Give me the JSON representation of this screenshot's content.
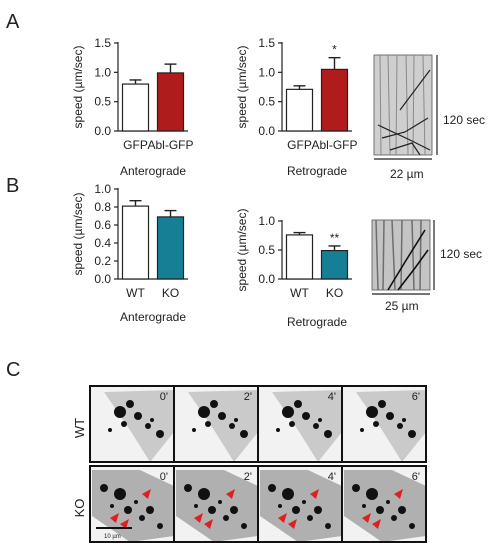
{
  "panels": {
    "a": "A",
    "b": "B",
    "c": "C"
  },
  "colors": {
    "gfp": "#ffffff",
    "abl": "#b01c1c",
    "wt": "#ffffff",
    "ko": "#167f95",
    "frame_bg": "#f2f2f2",
    "arrow": "#e02020"
  },
  "kymographs": {
    "a": {
      "time_label": "120 sec",
      "scale_label": "22 µm"
    },
    "b": {
      "time_label": "120 sec",
      "scale_label": "25 µm"
    }
  },
  "microscopy": {
    "rows": [
      {
        "label": "WT",
        "frames": [
          "0'",
          "2'",
          "4'",
          "6'"
        ]
      },
      {
        "label": "KO",
        "frames": [
          "0'",
          "2'",
          "4'",
          "6'"
        ]
      }
    ],
    "scale_bar": "10 µm"
  },
  "chart_data": [
    {
      "id": "a-antero",
      "type": "bar",
      "xlabel": "Anterograde",
      "ylabel": "speed (µm/sec)",
      "categories": [
        "GFP",
        "Abl-GFP"
      ],
      "values": [
        0.8,
        0.99
      ],
      "errors": [
        0.07,
        0.15
      ],
      "colors": [
        "#ffffff",
        "#b01c1c"
      ],
      "ylim": [
        0,
        1.5
      ],
      "yticks": [
        "0.0",
        "0.5",
        "1.0",
        "1.5"
      ],
      "yticks_vals": [
        0,
        0.5,
        1.0,
        1.5
      ],
      "significance": [
        "",
        ""
      ]
    },
    {
      "id": "a-retro",
      "type": "bar",
      "xlabel": "Retrograde",
      "ylabel": "speed (µm/sec)",
      "categories": [
        "GFP",
        "Abl-GFP"
      ],
      "values": [
        0.71,
        1.05
      ],
      "errors": [
        0.06,
        0.2
      ],
      "colors": [
        "#ffffff",
        "#b01c1c"
      ],
      "ylim": [
        0,
        1.5
      ],
      "yticks": [
        "0.0",
        "0.5",
        "1.0",
        "1.5"
      ],
      "yticks_vals": [
        0,
        0.5,
        1.0,
        1.5
      ],
      "significance": [
        "",
        "*"
      ]
    },
    {
      "id": "b-antero",
      "type": "bar",
      "xlabel": "Anterograde",
      "ylabel": "speed (µm/sec)",
      "categories": [
        "WT",
        "KO"
      ],
      "values": [
        0.81,
        0.69
      ],
      "errors": [
        0.06,
        0.07
      ],
      "colors": [
        "#ffffff",
        "#167f95"
      ],
      "ylim": [
        0,
        1.0
      ],
      "yticks": [
        "0.0",
        "0.2",
        "0.4",
        "0.6",
        "0.8",
        "1.0"
      ],
      "yticks_vals": [
        0,
        0.2,
        0.4,
        0.6,
        0.8,
        1.0
      ],
      "significance": [
        "",
        ""
      ]
    },
    {
      "id": "b-retro",
      "type": "bar",
      "xlabel": "Retrograde",
      "ylabel": "speed (µm/sec)",
      "categories": [
        "WT",
        "KO"
      ],
      "values": [
        0.76,
        0.49
      ],
      "errors": [
        0.04,
        0.08
      ],
      "colors": [
        "#ffffff",
        "#167f95"
      ],
      "ylim": [
        0,
        1.0
      ],
      "yticks": [
        "0.0",
        "0.5",
        "1.0"
      ],
      "yticks_vals": [
        0,
        0.5,
        1.0
      ],
      "significance": [
        "",
        "**"
      ]
    }
  ]
}
